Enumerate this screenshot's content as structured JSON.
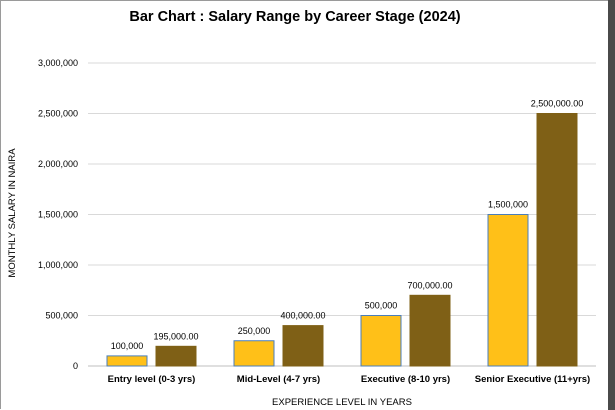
{
  "chart_data": {
    "type": "bar",
    "title": "Bar Chart : Salary Range by Career Stage (2024)",
    "xlabel": "EXPERIENCE LEVEL IN YEARS",
    "ylabel": "MONTHLY SALARY IN NAIRA",
    "ylim": [
      0,
      3000000
    ],
    "yticks": [
      {
        "value": 0,
        "label": "0"
      },
      {
        "value": 500000,
        "label": "500,000"
      },
      {
        "value": 1000000,
        "label": "1,000,000"
      },
      {
        "value": 1500000,
        "label": "1,500,000"
      },
      {
        "value": 2000000,
        "label": "2,000,000"
      },
      {
        "value": 2500000,
        "label": "2,500,000"
      },
      {
        "value": 3000000,
        "label": "3,000,000"
      }
    ],
    "grid": true,
    "legend": "none",
    "categories": [
      "Entry level (0-3 yrs)",
      "Mid-Level (4-7 yrs)",
      "Executive (8-10 yrs)",
      "Senior Executive (11+yrs)"
    ],
    "series": [
      {
        "values": [
          100000,
          250000,
          500000,
          1500000
        ],
        "labels": [
          "100,000",
          "250,000",
          "500,000",
          "1,500,000"
        ],
        "color": "#FFC018",
        "border": "#4A7EBB"
      },
      {
        "values": [
          195000,
          400000,
          700000,
          2500000
        ],
        "labels": [
          "195,000.00",
          "400,000.00",
          "700,000.00",
          "2,500,000.00"
        ],
        "color": "#7F6016",
        "border": "#7F6016"
      }
    ],
    "colors": {
      "gridline": "#D9D9D9",
      "axis": "#BFBFBF"
    }
  }
}
